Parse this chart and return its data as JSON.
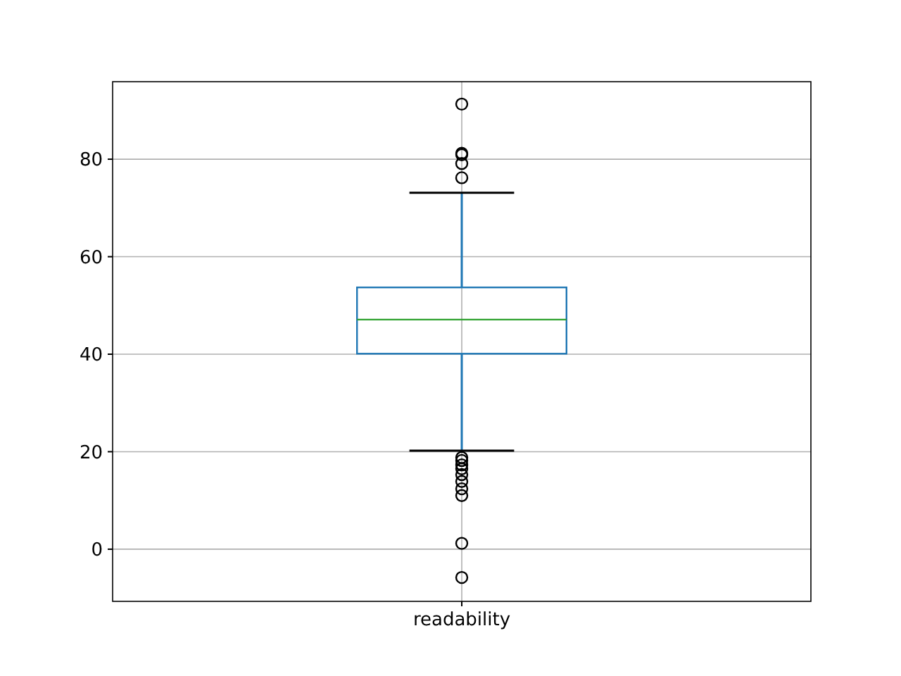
{
  "chart_data": {
    "type": "box",
    "categories": [
      "readability"
    ],
    "boxes": [
      {
        "low": 20.2,
        "q1": 40.1,
        "median": 47.1,
        "q3": 53.7,
        "high": 73.1,
        "outliers": [
          91.3,
          81.2,
          80.9,
          79.1,
          76.2,
          18.8,
          18.2,
          17.3,
          16.5,
          15.3,
          13.9,
          12.4,
          11.0,
          1.2,
          -5.8
        ]
      }
    ],
    "ylim": [
      -10.7,
      95.9
    ],
    "yticks": [
      0,
      20,
      40,
      60,
      80
    ],
    "grid": true,
    "color": "#1f77b4"
  }
}
